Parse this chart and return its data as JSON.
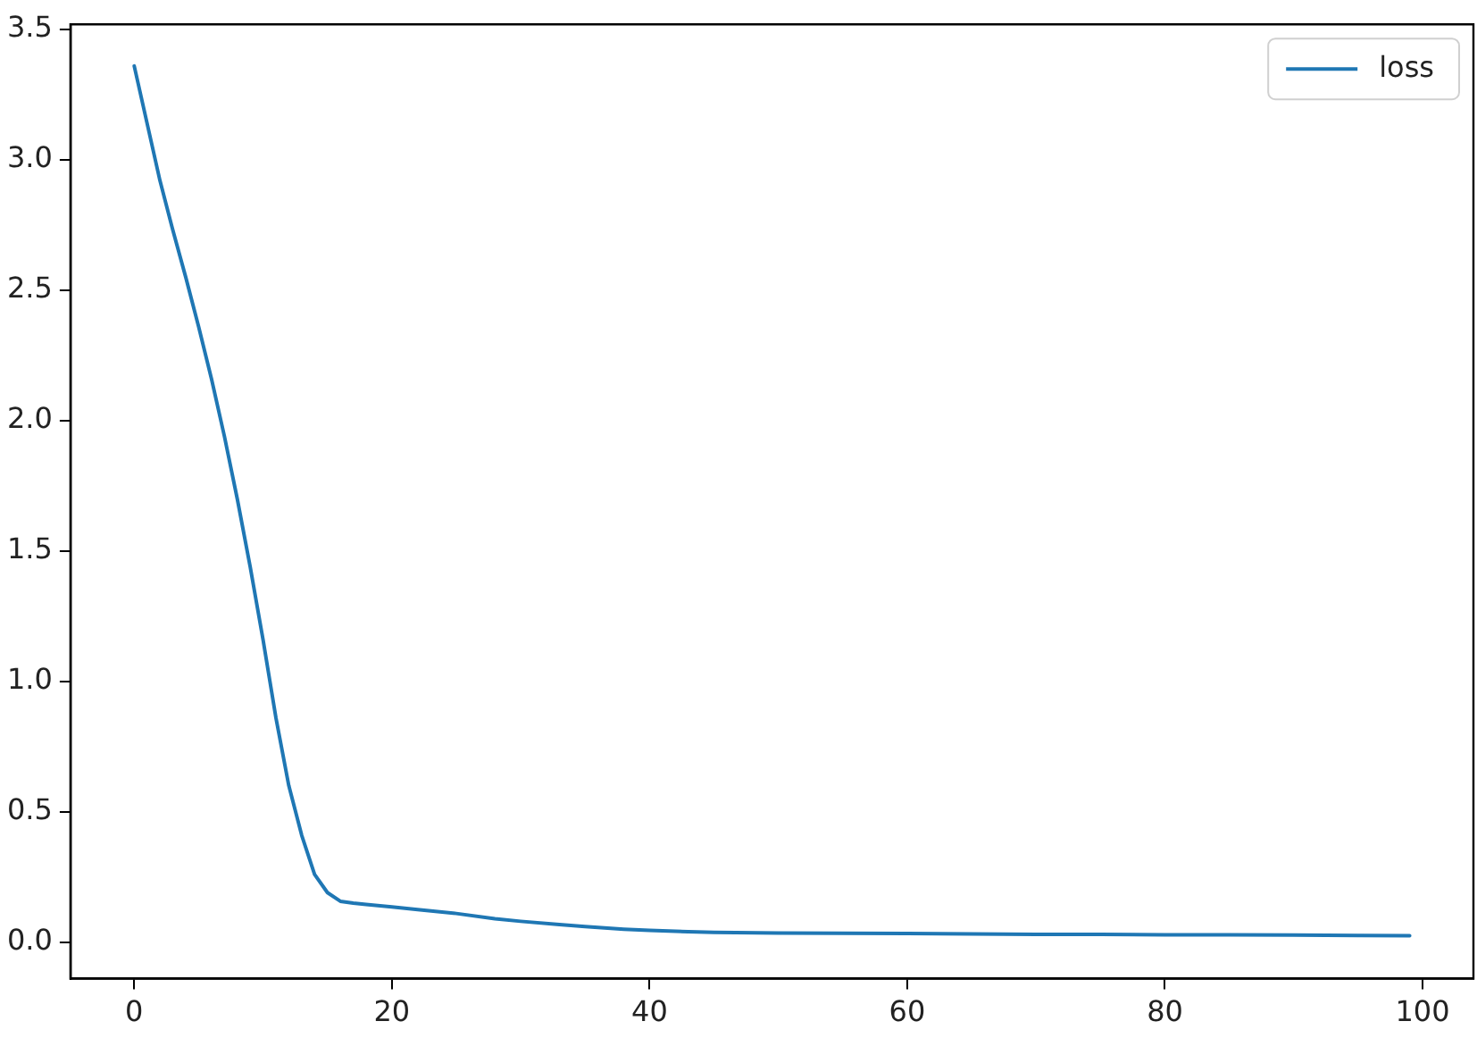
{
  "chart_data": {
    "type": "line",
    "x": [
      0,
      1,
      2,
      3,
      4,
      5,
      6,
      7,
      8,
      9,
      10,
      11,
      12,
      13,
      14,
      15,
      16,
      17,
      18,
      20,
      22,
      25,
      28,
      30,
      33,
      35,
      38,
      40,
      43,
      45,
      50,
      55,
      60,
      65,
      70,
      75,
      80,
      85,
      90,
      95,
      99
    ],
    "series": [
      {
        "name": "loss",
        "color": "#1f77b4",
        "values": [
          3.36,
          3.14,
          2.92,
          2.73,
          2.55,
          2.36,
          2.16,
          1.94,
          1.7,
          1.44,
          1.16,
          0.86,
          0.6,
          0.41,
          0.26,
          0.19,
          0.157,
          0.15,
          0.145,
          0.135,
          0.125,
          0.11,
          0.09,
          0.08,
          0.068,
          0.06,
          0.05,
          0.045,
          0.04,
          0.038,
          0.035,
          0.034,
          0.033,
          0.032,
          0.03,
          0.03,
          0.028,
          0.028,
          0.027,
          0.026,
          0.025
        ]
      }
    ],
    "xlim": [
      -4.95,
      103.95
    ],
    "xticks": [
      0,
      20,
      40,
      60,
      80,
      100
    ],
    "ylim": [
      -0.14,
      3.52
    ],
    "yticks": [
      {
        "value": 0,
        "label": "0.0"
      },
      0.5,
      {
        "value": 1,
        "label": "1.0"
      },
      1.5,
      {
        "value": 2,
        "label": "2.0"
      },
      2.5,
      {
        "value": 3,
        "label": "3.0"
      },
      3.5
    ],
    "legend": "top right",
    "grid": false,
    "marker": "none",
    "line_style": "solid"
  }
}
